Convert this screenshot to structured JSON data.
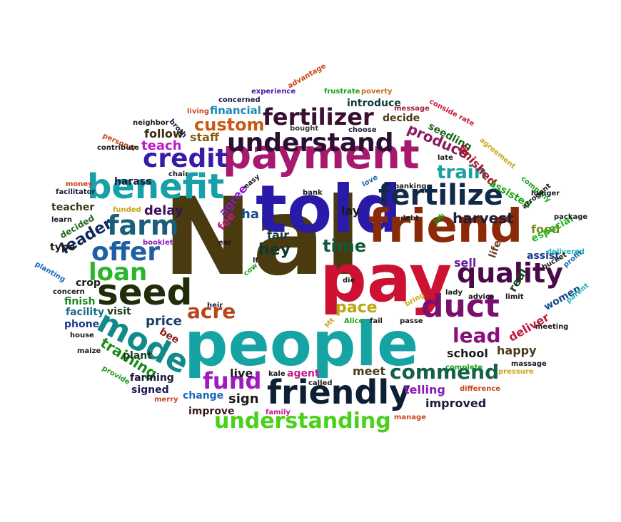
{
  "words": [
    {
      "text": "Nal",
      "color": "#4a3a0f"
    },
    {
      "text": "people",
      "color": "#16a3a3"
    },
    {
      "text": "pay",
      "color": "#cc1133"
    },
    {
      "text": "told",
      "color": "#2a1aa8"
    },
    {
      "text": "payment",
      "color": "#a6196e"
    },
    {
      "text": "friend",
      "color": "#8a2a08"
    },
    {
      "text": "friendly",
      "color": "#0d1f33"
    },
    {
      "text": "seed",
      "color": "#1f2d0a"
    },
    {
      "text": "benefit",
      "color": "#16a0a8"
    },
    {
      "text": "understand",
      "color": "#2a0f33"
    },
    {
      "text": "fertilize",
      "color": "#102a4a"
    },
    {
      "text": "duct",
      "color": "#7a0f6e"
    },
    {
      "text": "quality",
      "color": "#4a0a4a"
    },
    {
      "text": "mode",
      "color": "#128a8a"
    },
    {
      "text": "offer",
      "color": "#1f5fa3"
    },
    {
      "text": "loan",
      "color": "#2bb52b"
    },
    {
      "text": "farm",
      "color": "#1a5f7a"
    },
    {
      "text": "credit",
      "color": "#3a1aa8"
    },
    {
      "text": "fertilizer",
      "color": "#3a0f33"
    },
    {
      "text": "understanding",
      "color": "#4ad11a"
    },
    {
      "text": "commend",
      "color": "#12604a"
    },
    {
      "text": "lead",
      "color": "#8a0f7a"
    },
    {
      "text": "fund",
      "color": "#a01ac0"
    },
    {
      "text": "acre",
      "color": "#b8461a"
    },
    {
      "text": "custom",
      "color": "#c85a12"
    },
    {
      "text": "train",
      "color": "#1aa0a3"
    },
    {
      "text": "time",
      "color": "#0f5a3a"
    },
    {
      "text": "hey",
      "color": "#0f3a2a"
    },
    {
      "text": "leader",
      "color": "#0f2a5a"
    },
    {
      "text": "training",
      "color": "#1a8a1a"
    },
    {
      "text": "pace",
      "color": "#b8a812"
    },
    {
      "text": "produce",
      "color": "#8a1a5a"
    },
    {
      "text": "harvest",
      "color": "#1f1f3a"
    },
    {
      "text": "delay",
      "color": "#3a0f5a"
    },
    {
      "text": "price",
      "color": "#1a3a6a"
    },
    {
      "text": "teach",
      "color": "#c01ac8"
    },
    {
      "text": "follow",
      "color": "#3a2a0f"
    },
    {
      "text": "staff",
      "color": "#8a5a1a"
    },
    {
      "text": "financial",
      "color": "#1a8ab8"
    },
    {
      "text": "introduce",
      "color": "#0f3a3a"
    },
    {
      "text": "decide",
      "color": "#4a3a0f"
    },
    {
      "text": "seedling",
      "color": "#1a6a1a"
    },
    {
      "text": "finished",
      "color": "#a81a2a"
    },
    {
      "text": "assisted",
      "color": "#1aa01a"
    },
    {
      "text": "food",
      "color": "#7a8a1a"
    },
    {
      "text": "especial",
      "color": "#2ab52a"
    },
    {
      "text": "assist",
      "color": "#1a3a8a"
    },
    {
      "text": "sell",
      "color": "#6a1aa8"
    },
    {
      "text": "life",
      "color": "#6a3a1a"
    },
    {
      "text": "real",
      "color": "#1a4a1a"
    },
    {
      "text": "women",
      "color": "#1a4a8a"
    },
    {
      "text": "deliver",
      "color": "#c01a3a"
    },
    {
      "text": "happy",
      "color": "#4a3a1a"
    },
    {
      "text": "school",
      "color": "#1a1a1a"
    },
    {
      "text": "improved",
      "color": "#1a1a3a"
    },
    {
      "text": "telling",
      "color": "#8a1ab8"
    },
    {
      "text": "meet",
      "color": "#4a3a1a"
    },
    {
      "text": "sign",
      "color": "#1a1a1a"
    },
    {
      "text": "live",
      "color": "#1a1a1a"
    },
    {
      "text": "agent",
      "color": "#c81a8a"
    },
    {
      "text": "change",
      "color": "#1a6ab8"
    },
    {
      "text": "improve",
      "color": "#3a1a1a"
    },
    {
      "text": "signed",
      "color": "#1a1a5a"
    },
    {
      "text": "farming",
      "color": "#1a1a3a"
    },
    {
      "text": "plant",
      "color": "#1a3a1a"
    },
    {
      "text": "bee",
      "color": "#8a1a1a"
    },
    {
      "text": "phone",
      "color": "#1a3a8a"
    },
    {
      "text": "facility",
      "color": "#1a6a8a"
    },
    {
      "text": "finish",
      "color": "#1a8a1a"
    },
    {
      "text": "crop",
      "color": "#1a1a1a"
    },
    {
      "text": "type",
      "color": "#1a1a1a"
    },
    {
      "text": "decided",
      "color": "#1a6a1a"
    },
    {
      "text": "teacher",
      "color": "#3a3a1a"
    },
    {
      "text": "visit",
      "color": "#1a3a1a"
    },
    {
      "text": "harass",
      "color": "#1a1a3a"
    },
    {
      "text": "agree",
      "color": "#8a1ab8"
    },
    {
      "text": "ha",
      "color": "#1a4a8a"
    },
    {
      "text": "fee",
      "color": "#c01a8a"
    },
    {
      "text": "fair",
      "color": "#1a3a3a"
    },
    {
      "text": "lay",
      "color": "#1a1a1a"
    },
    {
      "text": "experience",
      "color": "#4a1aa8"
    },
    {
      "text": "advantage",
      "color": "#c8461a"
    },
    {
      "text": "frustrate",
      "color": "#1aa01a"
    },
    {
      "text": "poverty",
      "color": "#c86a1a"
    },
    {
      "text": "concerned",
      "color": "#1a1a3a"
    },
    {
      "text": "message",
      "color": "#a81a3a"
    },
    {
      "text": "conside rate",
      "color": "#c81a3a"
    },
    {
      "text": "neighbor",
      "color": "#1a1a1a"
    },
    {
      "text": "living",
      "color": "#c8461a"
    },
    {
      "text": "broth",
      "color": "#1a1a3a"
    },
    {
      "text": "bought",
      "color": "#3a3a3a"
    },
    {
      "text": "choose",
      "color": "#1a1a3a"
    },
    {
      "text": "personal",
      "color": "#c8461a"
    },
    {
      "text": "contribute",
      "color": "#1a1a1a"
    },
    {
      "text": "chair",
      "color": "#1a1a1a"
    },
    {
      "text": "late",
      "color": "#1a1a1a"
    },
    {
      "text": "agreement",
      "color": "#c8a81a"
    },
    {
      "text": "company",
      "color": "#1aa01a"
    },
    {
      "text": "money",
      "color": "#c8461a"
    },
    {
      "text": "facilitator",
      "color": "#1a1a3a"
    },
    {
      "text": "easy",
      "color": "#1a1a1a"
    },
    {
      "text": "bank",
      "color": "#1a1a1a"
    },
    {
      "text": "love",
      "color": "#1a6ab8"
    },
    {
      "text": "banking",
      "color": "#1a1a1a"
    },
    {
      "text": "hunger",
      "color": "#1a1a1a"
    },
    {
      "text": "funded",
      "color": "#c8a81a"
    },
    {
      "text": "arrogant",
      "color": "#1a1a1a"
    },
    {
      "text": "learn",
      "color": "#1a1a1a"
    },
    {
      "text": "debt",
      "color": "#1a1a1a"
    },
    {
      "text": "job",
      "color": "#1aa01a"
    },
    {
      "text": "package",
      "color": "#1a1a1a"
    },
    {
      "text": "booklet",
      "color": "#8a1ab8"
    },
    {
      "text": "ear",
      "color": "#1a1a1a"
    },
    {
      "text": "lt",
      "color": "#1a1a1a"
    },
    {
      "text": "delivered",
      "color": "#1ab8b8"
    },
    {
      "text": "planting",
      "color": "#1a6ab8"
    },
    {
      "text": "cow",
      "color": "#1aa01a"
    },
    {
      "text": "bucket",
      "color": "#1a1a1a"
    },
    {
      "text": "profit",
      "color": "#1a6ab8"
    },
    {
      "text": "concern",
      "color": "#1a1a1a"
    },
    {
      "text": "die",
      "color": "#1a1a1a"
    },
    {
      "text": "lady",
      "color": "#1a1a1a"
    },
    {
      "text": "advice",
      "color": "#1a1a1a"
    },
    {
      "text": "limit",
      "color": "#1a1a1a"
    },
    {
      "text": "parent",
      "color": "#1ab8b8"
    },
    {
      "text": "heir",
      "color": "#1a1a3a"
    },
    {
      "text": "bring",
      "color": "#c8a81a"
    },
    {
      "text": "Mt",
      "color": "#c8a81a"
    },
    {
      "text": "Alice",
      "color": "#1aa01a"
    },
    {
      "text": "fail",
      "color": "#1a1a1a"
    },
    {
      "text": "passe",
      "color": "#1a1a1a"
    },
    {
      "text": "meeting",
      "color": "#1a1a1a"
    },
    {
      "text": "house",
      "color": "#1a1a1a"
    },
    {
      "text": "maize",
      "color": "#1a1a1a"
    },
    {
      "text": "provide",
      "color": "#1aa01a"
    },
    {
      "text": "massage",
      "color": "#1a1a1a"
    },
    {
      "text": "complete",
      "color": "#1aa01a"
    },
    {
      "text": "pressure",
      "color": "#c8a81a"
    },
    {
      "text": "kale",
      "color": "#1a1a1a"
    },
    {
      "text": "called",
      "color": "#1a1a1a"
    },
    {
      "text": "difference",
      "color": "#c8461a"
    },
    {
      "text": "merry",
      "color": "#c8461a"
    },
    {
      "text": "family",
      "color": "#c81a8a"
    },
    {
      "text": "manage",
      "color": "#c8461a"
    }
  ]
}
